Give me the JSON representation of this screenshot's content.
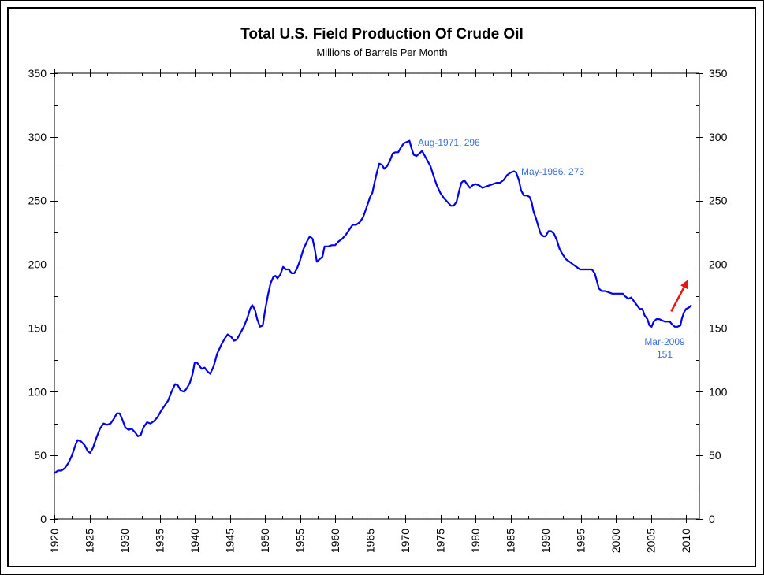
{
  "chart_data": {
    "type": "line",
    "title": "Total U.S. Field Production Of Crude Oil",
    "subtitle": "Millions of Barrels Per Month",
    "xlabel": "",
    "ylabel": "",
    "xlim": [
      1920,
      2011.9
    ],
    "ylim": [
      0,
      350
    ],
    "x_ticks": [
      1920,
      1925,
      1930,
      1935,
      1940,
      1945,
      1950,
      1955,
      1960,
      1965,
      1970,
      1975,
      1980,
      1985,
      1990,
      1995,
      2000,
      2005,
      2010
    ],
    "y_ticks": [
      0,
      50,
      100,
      150,
      200,
      250,
      300,
      350
    ],
    "y_axis_mirrored_right": true,
    "grid": false,
    "legend": "none",
    "series": [
      {
        "name": "U.S. Field Production of Crude Oil",
        "color": "#0000ee",
        "points": [
          [
            1920.0,
            36
          ],
          [
            1920.5,
            38
          ],
          [
            1921.0,
            38
          ],
          [
            1921.5,
            40
          ],
          [
            1922.0,
            44
          ],
          [
            1922.5,
            50
          ],
          [
            1923.0,
            58
          ],
          [
            1923.3,
            62
          ],
          [
            1923.8,
            61
          ],
          [
            1924.3,
            58
          ],
          [
            1924.8,
            53
          ],
          [
            1925.1,
            52
          ],
          [
            1925.5,
            56
          ],
          [
            1926.0,
            64
          ],
          [
            1926.5,
            71
          ],
          [
            1927.0,
            75
          ],
          [
            1927.5,
            74
          ],
          [
            1928.0,
            75
          ],
          [
            1928.5,
            79
          ],
          [
            1928.9,
            83
          ],
          [
            1929.3,
            83
          ],
          [
            1929.7,
            78
          ],
          [
            1930.1,
            72
          ],
          [
            1930.6,
            70
          ],
          [
            1931.0,
            71
          ],
          [
            1931.5,
            68
          ],
          [
            1931.9,
            65
          ],
          [
            1932.3,
            66
          ],
          [
            1932.7,
            72
          ],
          [
            1933.2,
            76
          ],
          [
            1933.7,
            75
          ],
          [
            1934.2,
            77
          ],
          [
            1934.7,
            80
          ],
          [
            1935.2,
            85
          ],
          [
            1935.7,
            89
          ],
          [
            1936.2,
            93
          ],
          [
            1936.7,
            100
          ],
          [
            1937.2,
            106
          ],
          [
            1937.6,
            105
          ],
          [
            1938.0,
            101
          ],
          [
            1938.5,
            100
          ],
          [
            1938.9,
            103
          ],
          [
            1939.3,
            107
          ],
          [
            1939.7,
            114
          ],
          [
            1940.0,
            123
          ],
          [
            1940.3,
            123
          ],
          [
            1940.7,
            120
          ],
          [
            1941.0,
            118
          ],
          [
            1941.4,
            119
          ],
          [
            1941.8,
            116
          ],
          [
            1942.2,
            114
          ],
          [
            1942.7,
            120
          ],
          [
            1943.2,
            130
          ],
          [
            1943.8,
            137
          ],
          [
            1944.3,
            142
          ],
          [
            1944.7,
            145
          ],
          [
            1945.2,
            143
          ],
          [
            1945.6,
            140
          ],
          [
            1946.0,
            141
          ],
          [
            1946.5,
            146
          ],
          [
            1947.0,
            151
          ],
          [
            1947.5,
            158
          ],
          [
            1947.9,
            165
          ],
          [
            1948.2,
            168
          ],
          [
            1948.6,
            164
          ],
          [
            1948.9,
            157
          ],
          [
            1949.3,
            151
          ],
          [
            1949.7,
            152
          ],
          [
            1950.0,
            163
          ],
          [
            1950.4,
            175
          ],
          [
            1950.8,
            185
          ],
          [
            1951.2,
            190
          ],
          [
            1951.5,
            191
          ],
          [
            1951.8,
            189
          ],
          [
            1952.2,
            192
          ],
          [
            1952.6,
            198
          ],
          [
            1953.0,
            196
          ],
          [
            1953.4,
            196
          ],
          [
            1953.8,
            193
          ],
          [
            1954.2,
            193
          ],
          [
            1954.6,
            197
          ],
          [
            1955.0,
            203
          ],
          [
            1955.5,
            212
          ],
          [
            1956.0,
            218
          ],
          [
            1956.4,
            222
          ],
          [
            1956.8,
            220
          ],
          [
            1957.1,
            212
          ],
          [
            1957.4,
            202
          ],
          [
            1957.8,
            204
          ],
          [
            1958.2,
            206
          ],
          [
            1958.5,
            214
          ],
          [
            1959.0,
            214
          ],
          [
            1959.5,
            215
          ],
          [
            1960.0,
            215
          ],
          [
            1960.5,
            218
          ],
          [
            1961.0,
            220
          ],
          [
            1961.5,
            223
          ],
          [
            1962.0,
            227
          ],
          [
            1962.5,
            231
          ],
          [
            1963.0,
            231
          ],
          [
            1963.5,
            233
          ],
          [
            1964.0,
            237
          ],
          [
            1964.5,
            245
          ],
          [
            1965.0,
            253
          ],
          [
            1965.3,
            256
          ],
          [
            1965.7,
            266
          ],
          [
            1966.0,
            273
          ],
          [
            1966.3,
            279
          ],
          [
            1966.7,
            278
          ],
          [
            1967.0,
            275
          ],
          [
            1967.4,
            277
          ],
          [
            1967.8,
            281
          ],
          [
            1968.2,
            287
          ],
          [
            1968.6,
            288
          ],
          [
            1969.0,
            288
          ],
          [
            1969.4,
            292
          ],
          [
            1969.8,
            295
          ],
          [
            1970.2,
            296
          ],
          [
            1970.6,
            297
          ],
          [
            1970.9,
            291
          ],
          [
            1971.2,
            286
          ],
          [
            1971.6,
            285
          ],
          [
            1972.0,
            287
          ],
          [
            1972.4,
            289
          ],
          [
            1972.8,
            285
          ],
          [
            1973.2,
            281
          ],
          [
            1973.6,
            277
          ],
          [
            1974.0,
            270
          ],
          [
            1974.5,
            262
          ],
          [
            1975.0,
            256
          ],
          [
            1975.5,
            252
          ],
          [
            1976.0,
            249
          ],
          [
            1976.5,
            246
          ],
          [
            1976.9,
            246
          ],
          [
            1977.3,
            249
          ],
          [
            1977.7,
            258
          ],
          [
            1978.0,
            264
          ],
          [
            1978.4,
            266
          ],
          [
            1978.8,
            263
          ],
          [
            1979.2,
            260
          ],
          [
            1979.6,
            262
          ],
          [
            1980.0,
            263
          ],
          [
            1980.5,
            262
          ],
          [
            1981.0,
            260
          ],
          [
            1981.5,
            261
          ],
          [
            1982.0,
            262
          ],
          [
            1982.5,
            263
          ],
          [
            1983.0,
            264
          ],
          [
            1983.5,
            264
          ],
          [
            1984.0,
            266
          ],
          [
            1984.5,
            270
          ],
          [
            1985.0,
            272
          ],
          [
            1985.5,
            273
          ],
          [
            1985.8,
            272
          ],
          [
            1986.2,
            266
          ],
          [
            1986.5,
            258
          ],
          [
            1986.9,
            254
          ],
          [
            1987.3,
            254
          ],
          [
            1987.7,
            253
          ],
          [
            1988.0,
            249
          ],
          [
            1988.3,
            241
          ],
          [
            1988.7,
            235
          ],
          [
            1989.0,
            229
          ],
          [
            1989.3,
            224
          ],
          [
            1989.7,
            222
          ],
          [
            1990.0,
            222
          ],
          [
            1990.4,
            226
          ],
          [
            1990.8,
            226
          ],
          [
            1991.2,
            224
          ],
          [
            1991.6,
            219
          ],
          [
            1992.0,
            212
          ],
          [
            1992.4,
            208
          ],
          [
            1992.9,
            204
          ],
          [
            1993.4,
            202
          ],
          [
            1993.9,
            200
          ],
          [
            1994.4,
            198
          ],
          [
            1994.9,
            196
          ],
          [
            1995.4,
            196
          ],
          [
            1996.0,
            196
          ],
          [
            1996.6,
            196
          ],
          [
            1997.0,
            193
          ],
          [
            1997.3,
            187
          ],
          [
            1997.6,
            181
          ],
          [
            1998.0,
            179
          ],
          [
            1998.5,
            179
          ],
          [
            1999.0,
            178
          ],
          [
            1999.5,
            177
          ],
          [
            2000.0,
            177
          ],
          [
            2000.5,
            177
          ],
          [
            2001.0,
            177
          ],
          [
            2001.3,
            175
          ],
          [
            2001.8,
            173
          ],
          [
            2002.2,
            174
          ],
          [
            2002.6,
            171
          ],
          [
            2003.0,
            168
          ],
          [
            2003.4,
            165
          ],
          [
            2003.8,
            165
          ],
          [
            2004.1,
            160
          ],
          [
            2004.5,
            157
          ],
          [
            2004.8,
            152
          ],
          [
            2005.1,
            151
          ],
          [
            2005.4,
            155
          ],
          [
            2005.8,
            157
          ],
          [
            2006.2,
            157
          ],
          [
            2006.6,
            156
          ],
          [
            2007.0,
            155
          ],
          [
            2007.4,
            155
          ],
          [
            2007.7,
            155
          ],
          [
            2008.0,
            153
          ],
          [
            2008.4,
            151
          ],
          [
            2008.8,
            151
          ],
          [
            2009.2,
            152
          ],
          [
            2009.4,
            157
          ],
          [
            2009.7,
            162
          ],
          [
            2010.0,
            165
          ],
          [
            2010.4,
            166
          ],
          [
            2010.8,
            168
          ]
        ]
      }
    ],
    "annotations": [
      {
        "id": "peak-1971",
        "text": "Aug-1971, 296",
        "x": 1970.6,
        "y": 297
      },
      {
        "id": "peak-1986",
        "text": "May-1986, 273",
        "x": 1985.5,
        "y": 273
      },
      {
        "id": "trough-2009",
        "line1": "Mar-2009",
        "line2": "151",
        "x": 2008.6,
        "y": 151
      }
    ],
    "arrow": {
      "color": "#ee1111",
      "from": [
        2007.9,
        163
      ],
      "to": [
        2010.3,
        188
      ],
      "meaning": "upward trend"
    }
  }
}
